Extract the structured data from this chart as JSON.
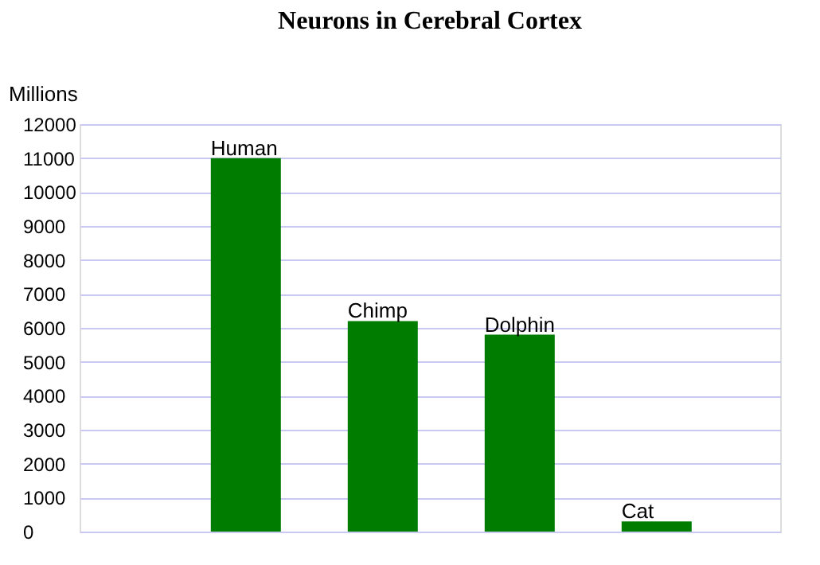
{
  "chart_data": {
    "type": "bar",
    "title": "Neurons in Cerebral Cortex",
    "ylabel": "Millions",
    "categories": [
      "Human",
      "Chimp",
      "Dolphin",
      "Cat"
    ],
    "values": [
      11000,
      6200,
      5800,
      300
    ],
    "color": "#007c00",
    "ylim": [
      0,
      12000
    ],
    "yticks": [
      0,
      1000,
      2000,
      3000,
      4000,
      5000,
      6000,
      7000,
      8000,
      9000,
      10000,
      11000,
      12000
    ],
    "grid": "y"
  }
}
